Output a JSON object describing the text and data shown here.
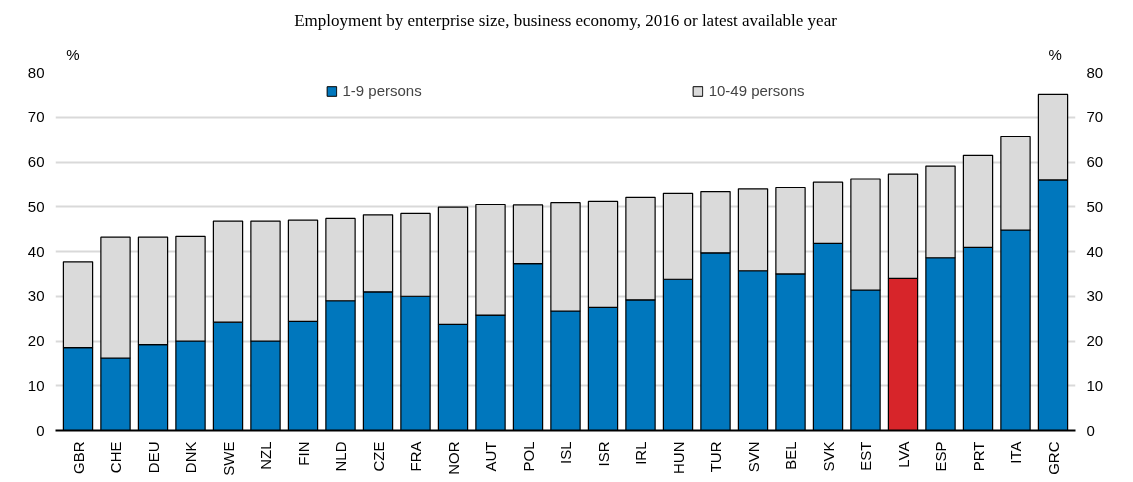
{
  "chart_data": {
    "type": "bar",
    "title": "Employment by enterprise size, business economy, 2016 or latest available year",
    "categories": [
      "GBR",
      "CHE",
      "DEU",
      "DNK",
      "SWE",
      "NZL",
      "FIN",
      "NLD",
      "CZE",
      "FRA",
      "NOR",
      "AUT",
      "POL",
      "ISL",
      "ISR",
      "IRL",
      "HUN",
      "TUR",
      "SVN",
      "BEL",
      "SVK",
      "EST",
      "LVA",
      "ESP",
      "PRT",
      "ITA",
      "GRC"
    ],
    "stacked": true,
    "series": [
      {
        "name": "1-9 persons",
        "color": "#0077bd",
        "colors": [
          "#0077bd",
          "#0077bd",
          "#0077bd",
          "#0077bd",
          "#0077bd",
          "#0077bd",
          "#0077bd",
          "#0077bd",
          "#0077bd",
          "#0077bd",
          "#0077bd",
          "#0077bd",
          "#0077bd",
          "#0077bd",
          "#0077bd",
          "#0077bd",
          "#0077bd",
          "#0077bd",
          "#0077bd",
          "#0077bd",
          "#0077bd",
          "#0077bd",
          "#d7252a",
          "#0077bd",
          "#0077bd",
          "#0077bd",
          "#0077bd"
        ],
        "values": [
          18.5,
          16.2,
          19.2,
          20.0,
          24.2,
          20.0,
          24.4,
          29.0,
          31.0,
          30.0,
          23.7,
          25.8,
          37.3,
          26.7,
          27.5,
          29.2,
          33.8,
          39.7,
          35.7,
          35.0,
          41.8,
          31.4,
          34.0,
          38.6,
          40.9,
          44.8,
          56.0
        ]
      },
      {
        "name": "10-49 persons",
        "color": "#dadada",
        "values": [
          19.2,
          27.0,
          24.0,
          23.4,
          22.6,
          26.8,
          22.6,
          18.4,
          17.2,
          18.5,
          26.2,
          24.7,
          13.1,
          24.2,
          23.7,
          22.9,
          19.2,
          13.7,
          18.3,
          19.3,
          13.7,
          24.8,
          23.3,
          20.5,
          20.6,
          20.9,
          19.1
        ]
      }
    ],
    "ylabel": "%",
    "y2label": "%",
    "ylim": [
      0,
      80
    ],
    "yticks": [
      0,
      10,
      20,
      30,
      40,
      50,
      60,
      70,
      80
    ],
    "y2lim": [
      0,
      80
    ],
    "y2ticks": [
      0,
      10,
      20,
      30,
      40,
      50,
      60,
      70,
      80
    ],
    "grid": "y",
    "legend": "top"
  }
}
